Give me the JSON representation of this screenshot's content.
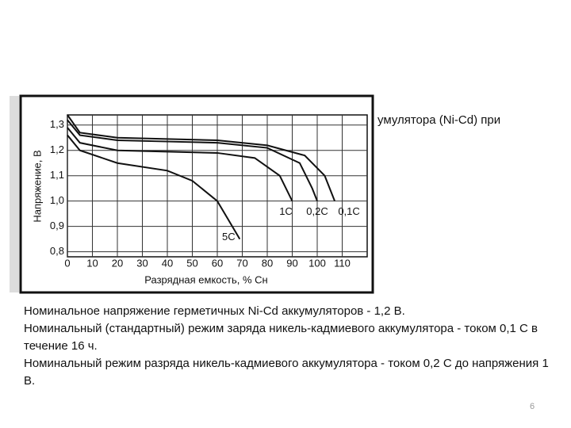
{
  "title_fragment": "умулятора (Ni-Cd) при",
  "chart_data": {
    "type": "line",
    "xlabel": "Разрядная емкость, % Cн",
    "ylabel": "Напряжение, В",
    "xlim": [
      0,
      120
    ],
    "ylim": [
      0.78,
      1.34
    ],
    "xticks": [
      0,
      10,
      20,
      30,
      40,
      50,
      60,
      70,
      80,
      90,
      100,
      110
    ],
    "yticks": [
      {
        "value": 0.8,
        "label": "0,8"
      },
      {
        "value": 0.9,
        "label": "0,9"
      },
      {
        "value": 1.0,
        "label": "1,0"
      },
      {
        "value": 1.1,
        "label": "1,1"
      },
      {
        "value": 1.2,
        "label": "1,2"
      },
      {
        "value": 1.3,
        "label": "1,3"
      }
    ],
    "grid": true,
    "color": "#111111",
    "series": [
      {
        "name": "1C",
        "x": [
          0,
          5,
          20,
          40,
          60,
          75,
          85,
          90
        ],
        "values": [
          1.29,
          1.23,
          1.2,
          1.195,
          1.19,
          1.17,
          1.1,
          1.0
        ]
      },
      {
        "name": "0,2C",
        "x": [
          0,
          5,
          20,
          40,
          60,
          80,
          93,
          98,
          100
        ],
        "values": [
          1.32,
          1.26,
          1.24,
          1.235,
          1.23,
          1.21,
          1.15,
          1.05,
          1.0
        ]
      },
      {
        "name": "0,1C",
        "x": [
          0,
          5,
          20,
          40,
          60,
          80,
          95,
          103,
          107
        ],
        "values": [
          1.34,
          1.27,
          1.25,
          1.245,
          1.24,
          1.22,
          1.18,
          1.1,
          1.0
        ]
      },
      {
        "name": "5C",
        "x": [
          0,
          5,
          20,
          40,
          50,
          60,
          66,
          69
        ],
        "values": [
          1.26,
          1.2,
          1.15,
          1.12,
          1.08,
          1.0,
          0.9,
          0.85
        ]
      }
    ]
  },
  "paragraphs": [
    "Номинальное напряжение герметичных Ni-Cd аккумуляторов - 1,2 В.",
    "Номинальный (стандартный) режим заряда никель-кадмиевого аккумулятора - током 0,1 С в течение 16 ч.",
    "Номинальный режим разряда никель-кадмиевого аккумулятора - током 0,2 С до напряжения 1 В."
  ],
  "page_number": "6"
}
